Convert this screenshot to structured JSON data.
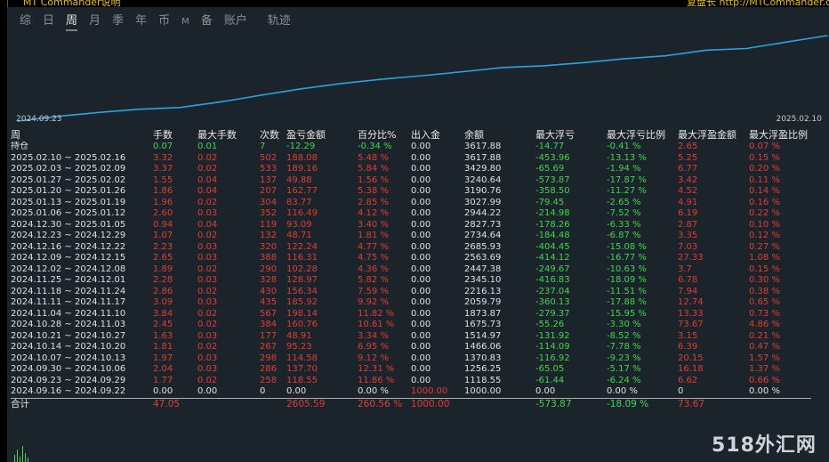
{
  "topbar": {
    "left_text": "MT Commander说明",
    "right_text": "复盘长 http://MTCommander.com"
  },
  "left_labels": [
    "0",
    "0",
    "0",
    "0",
    "00",
    "05",
    "00"
  ],
  "tabs": [
    {
      "label": "综",
      "active": false,
      "small": false
    },
    {
      "label": "日",
      "active": false,
      "small": false
    },
    {
      "label": "周",
      "active": true,
      "small": false
    },
    {
      "label": "月",
      "active": false,
      "small": false
    },
    {
      "label": "季",
      "active": false,
      "small": false
    },
    {
      "label": "年",
      "active": false,
      "small": false
    },
    {
      "label": "币",
      "active": false,
      "small": false
    },
    {
      "label": "M",
      "active": false,
      "small": true
    },
    {
      "label": "备",
      "active": false,
      "small": false
    },
    {
      "label": "账户",
      "active": false,
      "small": false
    },
    {
      "label": "轨迹",
      "active": false,
      "small": false,
      "track": true
    }
  ],
  "equity_chart": {
    "start_label": "2024.09.23",
    "end_label": "2025.02.10",
    "line_color": "#2aa3e0",
    "values": [
      1000.0,
      1118.55,
      1256.25,
      1370.83,
      1466.06,
      1514.97,
      1675.73,
      1873.87,
      2059.79,
      2216.13,
      2345.1,
      2447.38,
      2563.69,
      2685.93,
      2734.64,
      2827.73,
      2944.22,
      3027.99,
      3190.76,
      3240.64,
      3429.8,
      3617.88
    ]
  },
  "table": {
    "headers": [
      "周",
      "手数",
      "最大手数",
      "次数",
      "盈亏金额",
      "百分比%",
      "出入金",
      "余额",
      "最大浮亏",
      "最大浮亏比例",
      "最大浮盈金额",
      "最大浮盈比例"
    ],
    "rows": [
      {
        "period": "持仓",
        "lots": "0.07",
        "max_lots": "0.01",
        "count": "7",
        "pnl": "-12.29",
        "pct": "-0.34 %",
        "deposit": "0.00",
        "balance": "3617.88",
        "max_float_loss": "-14.77",
        "max_float_loss_pct": "-0.41 %",
        "max_float_profit": "2.65",
        "max_float_profit_pct": "0.07 %",
        "color": "g"
      },
      {
        "period": "2025.02.10 ~ 2025.02.16",
        "lots": "3.32",
        "max_lots": "0.02",
        "count": "502",
        "pnl": "188.08",
        "pct": "5.48 %",
        "deposit": "0.00",
        "balance": "3617.88",
        "max_float_loss": "-453.96",
        "max_float_loss_pct": "-13.13 %",
        "max_float_profit": "5.25",
        "max_float_profit_pct": "0.15 %",
        "color": "r"
      },
      {
        "period": "2025.02.03 ~ 2025.02.09",
        "lots": "3.37",
        "max_lots": "0.02",
        "count": "533",
        "pnl": "189.16",
        "pct": "5.84 %",
        "deposit": "0.00",
        "balance": "3429.80",
        "max_float_loss": "-65.69",
        "max_float_loss_pct": "-1.94 %",
        "max_float_profit": "6.77",
        "max_float_profit_pct": "0.20 %",
        "color": "r"
      },
      {
        "period": "2025.01.27 ~ 2025.02.02",
        "lots": "1.55",
        "max_lots": "0.04",
        "count": "137",
        "pnl": "49.88",
        "pct": "1.56 %",
        "deposit": "0.00",
        "balance": "3240.64",
        "max_float_loss": "-573.87",
        "max_float_loss_pct": "-17.87 %",
        "max_float_profit": "3.42",
        "max_float_profit_pct": "0.11 %",
        "color": "r"
      },
      {
        "period": "2025.01.20 ~ 2025.01.26",
        "lots": "1.86",
        "max_lots": "0.04",
        "count": "207",
        "pnl": "162.77",
        "pct": "5.38 %",
        "deposit": "0.00",
        "balance": "3190.76",
        "max_float_loss": "-358.50",
        "max_float_loss_pct": "-11.27 %",
        "max_float_profit": "4.52",
        "max_float_profit_pct": "0.14 %",
        "color": "r"
      },
      {
        "period": "2025.01.13 ~ 2025.01.19",
        "lots": "1.96",
        "max_lots": "0.02",
        "count": "304",
        "pnl": "83.77",
        "pct": "2.85 %",
        "deposit": "0.00",
        "balance": "3027.99",
        "max_float_loss": "-79.45",
        "max_float_loss_pct": "-2.65 %",
        "max_float_profit": "4.91",
        "max_float_profit_pct": "0.16 %",
        "color": "r"
      },
      {
        "period": "2025.01.06 ~ 2025.01.12",
        "lots": "2.60",
        "max_lots": "0.03",
        "count": "352",
        "pnl": "116.49",
        "pct": "4.12 %",
        "deposit": "0.00",
        "balance": "2944.22",
        "max_float_loss": "-214.98",
        "max_float_loss_pct": "-7.52 %",
        "max_float_profit": "6.19",
        "max_float_profit_pct": "0.22 %",
        "color": "r"
      },
      {
        "period": "2024.12.30 ~ 2025.01.05",
        "lots": "0.94",
        "max_lots": "0.04",
        "count": "119",
        "pnl": "93.09",
        "pct": "3.40 %",
        "deposit": "0.00",
        "balance": "2827.73",
        "max_float_loss": "-178.26",
        "max_float_loss_pct": "-6.33 %",
        "max_float_profit": "2.87",
        "max_float_profit_pct": "0.10 %",
        "color": "r"
      },
      {
        "period": "2024.12.23 ~ 2024.12.29",
        "lots": "1.07",
        "max_lots": "0.02",
        "count": "132",
        "pnl": "48.71",
        "pct": "1.81 %",
        "deposit": "0.00",
        "balance": "2734.64",
        "max_float_loss": "-184.48",
        "max_float_loss_pct": "-6.87 %",
        "max_float_profit": "3.35",
        "max_float_profit_pct": "0.12 %",
        "color": "r"
      },
      {
        "period": "2024.12.16 ~ 2024.12.22",
        "lots": "2.23",
        "max_lots": "0.03",
        "count": "320",
        "pnl": "122.24",
        "pct": "4.77 %",
        "deposit": "0.00",
        "balance": "2685.93",
        "max_float_loss": "-404.45",
        "max_float_loss_pct": "-15.08 %",
        "max_float_profit": "7.03",
        "max_float_profit_pct": "0.27 %",
        "color": "r"
      },
      {
        "period": "2024.12.09 ~ 2024.12.15",
        "lots": "2.65",
        "max_lots": "0.03",
        "count": "388",
        "pnl": "116.31",
        "pct": "4.75 %",
        "deposit": "0.00",
        "balance": "2563.69",
        "max_float_loss": "-414.12",
        "max_float_loss_pct": "-16.77 %",
        "max_float_profit": "27.33",
        "max_float_profit_pct": "1.08 %",
        "color": "r"
      },
      {
        "period": "2024.12.02 ~ 2024.12.08",
        "lots": "1.89",
        "max_lots": "0.02",
        "count": "290",
        "pnl": "102.28",
        "pct": "4.36 %",
        "deposit": "0.00",
        "balance": "2447.38",
        "max_float_loss": "-249.67",
        "max_float_loss_pct": "-10.63 %",
        "max_float_profit": "3.7",
        "max_float_profit_pct": "0.15 %",
        "color": "r"
      },
      {
        "period": "2024.11.25 ~ 2024.12.01",
        "lots": "2.28",
        "max_lots": "0.03",
        "count": "328",
        "pnl": "128.97",
        "pct": "5.82 %",
        "deposit": "0.00",
        "balance": "2345.10",
        "max_float_loss": "-416.83",
        "max_float_loss_pct": "-18.09 %",
        "max_float_profit": "6.78",
        "max_float_profit_pct": "0.30 %",
        "color": "r"
      },
      {
        "period": "2024.11.18 ~ 2024.11.24",
        "lots": "2.86",
        "max_lots": "0.02",
        "count": "430",
        "pnl": "156.34",
        "pct": "7.59 %",
        "deposit": "0.00",
        "balance": "2216.13",
        "max_float_loss": "-237.04",
        "max_float_loss_pct": "-11.51 %",
        "max_float_profit": "7.94",
        "max_float_profit_pct": "0.38 %",
        "color": "r"
      },
      {
        "period": "2024.11.11 ~ 2024.11.17",
        "lots": "3.09",
        "max_lots": "0.03",
        "count": "435",
        "pnl": "185.92",
        "pct": "9.92 %",
        "deposit": "0.00",
        "balance": "2059.79",
        "max_float_loss": "-360.13",
        "max_float_loss_pct": "-17.88 %",
        "max_float_profit": "12.74",
        "max_float_profit_pct": "0.65 %",
        "color": "r"
      },
      {
        "period": "2024.11.04 ~ 2024.11.10",
        "lots": "3.84",
        "max_lots": "0.02",
        "count": "567",
        "pnl": "198.14",
        "pct": "11.82 %",
        "deposit": "0.00",
        "balance": "1873.87",
        "max_float_loss": "-279.37",
        "max_float_loss_pct": "-15.95 %",
        "max_float_profit": "13.33",
        "max_float_profit_pct": "0.73 %",
        "color": "r"
      },
      {
        "period": "2024.10.28 ~ 2024.11.03",
        "lots": "2.45",
        "max_lots": "0.02",
        "count": "384",
        "pnl": "160.76",
        "pct": "10.61 %",
        "deposit": "0.00",
        "balance": "1675.73",
        "max_float_loss": "-55.26",
        "max_float_loss_pct": "-3.30 %",
        "max_float_profit": "73.67",
        "max_float_profit_pct": "4.86 %",
        "color": "r"
      },
      {
        "period": "2024.10.21 ~ 2024.10.27",
        "lots": "1.63",
        "max_lots": "0.03",
        "count": "177",
        "pnl": "48.91",
        "pct": "3.34 %",
        "deposit": "0.00",
        "balance": "1514.97",
        "max_float_loss": "-131.92",
        "max_float_loss_pct": "-8.52 %",
        "max_float_profit": "3.15",
        "max_float_profit_pct": "0.21 %",
        "color": "r"
      },
      {
        "period": "2024.10.14 ~ 2024.10.20",
        "lots": "1.81",
        "max_lots": "0.02",
        "count": "267",
        "pnl": "95.23",
        "pct": "6.95 %",
        "deposit": "0.00",
        "balance": "1466.06",
        "max_float_loss": "-114.09",
        "max_float_loss_pct": "-7.78 %",
        "max_float_profit": "6.39",
        "max_float_profit_pct": "0.47 %",
        "color": "r"
      },
      {
        "period": "2024.10.07 ~ 2024.10.13",
        "lots": "1.97",
        "max_lots": "0.03",
        "count": "298",
        "pnl": "114.58",
        "pct": "9.12 %",
        "deposit": "0.00",
        "balance": "1370.83",
        "max_float_loss": "-116.92",
        "max_float_loss_pct": "-9.23 %",
        "max_float_profit": "20.15",
        "max_float_profit_pct": "1.57 %",
        "color": "r"
      },
      {
        "period": "2024.09.30 ~ 2024.10.06",
        "lots": "2.04",
        "max_lots": "0.03",
        "count": "286",
        "pnl": "137.70",
        "pct": "12.31 %",
        "deposit": "0.00",
        "balance": "1256.25",
        "max_float_loss": "-65.05",
        "max_float_loss_pct": "-5.17 %",
        "max_float_profit": "16.18",
        "max_float_profit_pct": "1.37 %",
        "color": "r"
      },
      {
        "period": "2024.09.23 ~ 2024.09.29",
        "lots": "1.77",
        "max_lots": "0.02",
        "count": "258",
        "pnl": "118.55",
        "pct": "11.86 %",
        "deposit": "0.00",
        "balance": "1118.55",
        "max_float_loss": "-61.44",
        "max_float_loss_pct": "-6.24 %",
        "max_float_profit": "6.62",
        "max_float_profit_pct": "0.66 %",
        "color": "r"
      },
      {
        "period": "2024.09.16 ~ 2024.09.22",
        "lots": "0.00",
        "max_lots": "0.00",
        "count": "0",
        "pnl": "0.00",
        "pct": "0.00 %",
        "deposit": "1000.00",
        "balance": "1000.00",
        "max_float_loss": "0.00",
        "max_float_loss_pct": "0.00 %",
        "max_float_profit": "0",
        "max_float_profit_pct": "0.00 %",
        "color": "w",
        "deposit_red": true
      }
    ],
    "total": {
      "period": "合计",
      "lots": "47.05",
      "max_lots": "",
      "count": "",
      "pnl": "2605.59",
      "pct": "260.56 %",
      "deposit": "1000.00",
      "balance": "",
      "max_float_loss": "-573.87",
      "max_float_loss_pct": "-18.09 %",
      "max_float_profit": "73.67",
      "max_float_profit_pct": ""
    }
  },
  "watermark": "518外汇网"
}
